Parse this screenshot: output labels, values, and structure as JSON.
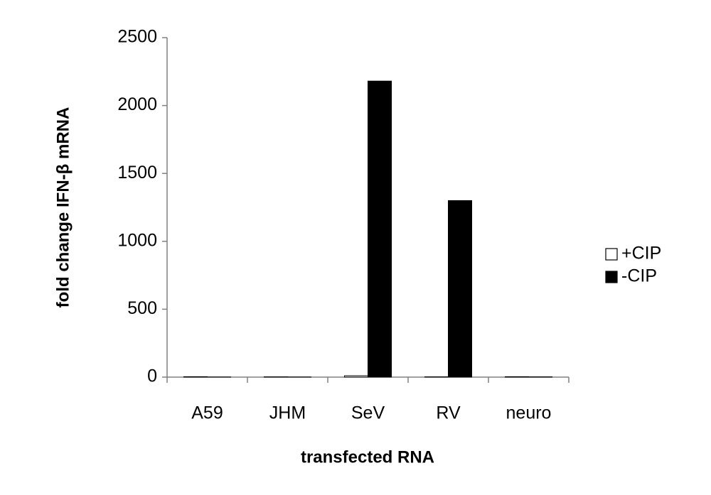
{
  "chart_data": {
    "type": "bar",
    "x_label": "transfected RNA",
    "y_label": "fold change IFN-β mRNA",
    "categories": [
      "A59",
      "JHM",
      "SeV",
      "RV",
      "neuro"
    ],
    "series": [
      {
        "name": "+CIP",
        "color": "#ffffff",
        "values": [
          3,
          2,
          10,
          2,
          3
        ]
      },
      {
        "name": "-CIP",
        "color": "#000000",
        "values": [
          1,
          1,
          2180,
          1300,
          2
        ]
      }
    ],
    "ylim": [
      0,
      2500
    ],
    "yticks": [
      0,
      500,
      1000,
      1500,
      2000,
      2500
    ],
    "grid": false,
    "legend": "right"
  }
}
